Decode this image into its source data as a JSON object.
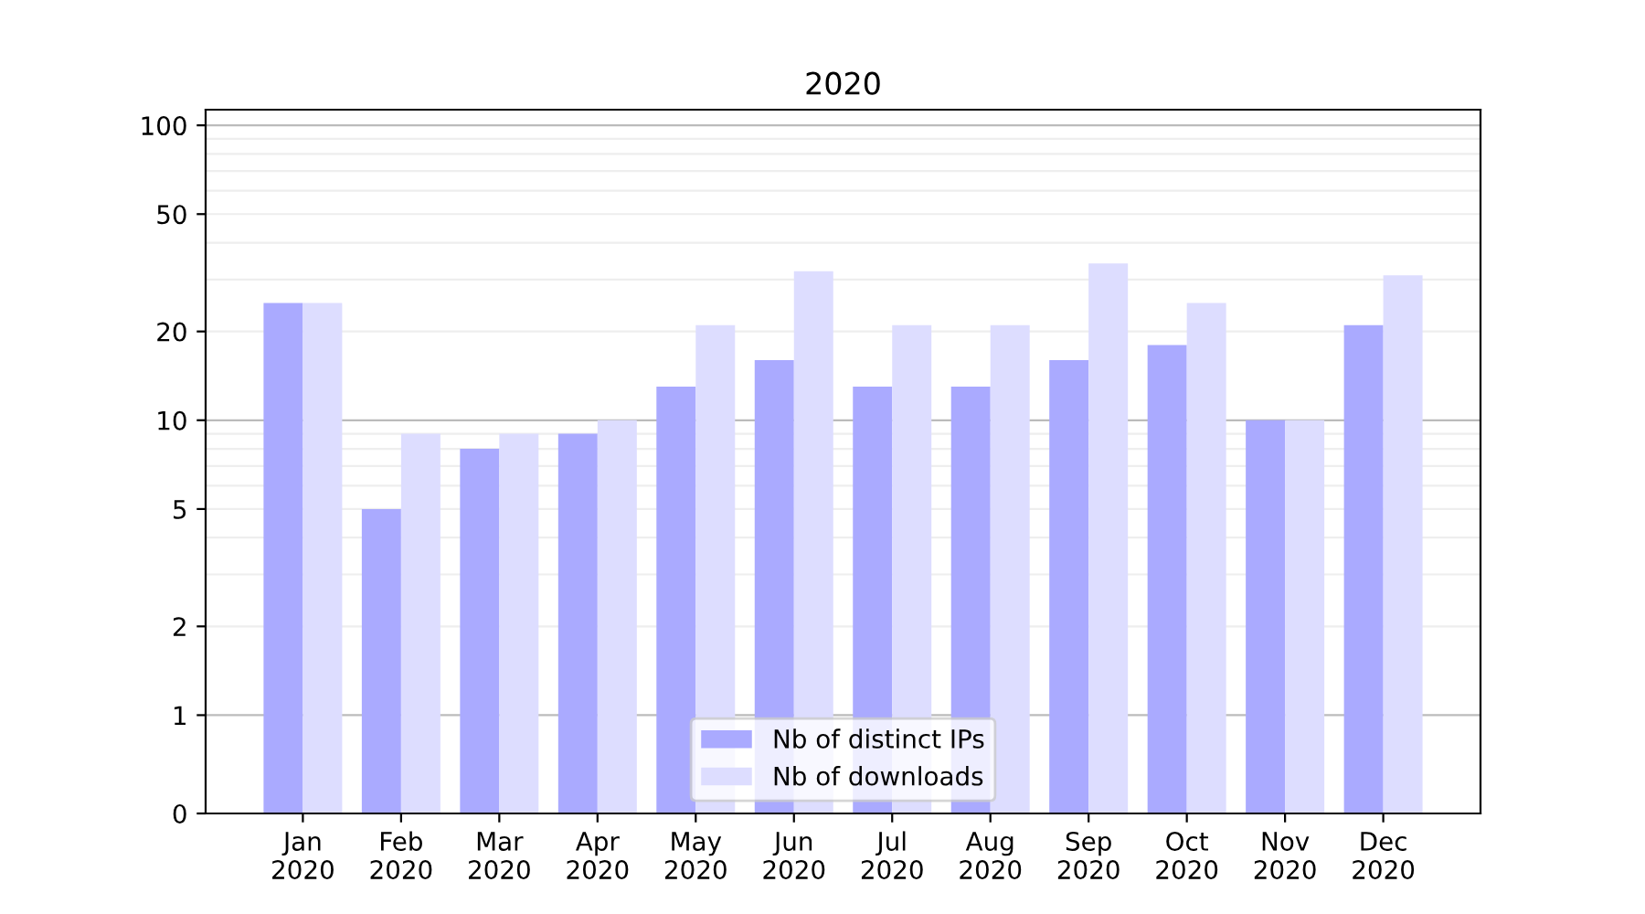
{
  "chart_data": {
    "type": "bar",
    "title": "2020",
    "categories": [
      "Jan\n2020",
      "Feb\n2020",
      "Mar\n2020",
      "Apr\n2020",
      "May\n2020",
      "Jun\n2020",
      "Jul\n2020",
      "Aug\n2020",
      "Sep\n2020",
      "Oct\n2020",
      "Nov\n2020",
      "Dec\n2020"
    ],
    "series": [
      {
        "name": "Nb of distinct IPs",
        "color": "#aaaaff",
        "values": [
          25,
          5,
          8,
          9,
          13,
          16,
          13,
          13,
          16,
          18,
          10,
          21
        ]
      },
      {
        "name": "Nb of downloads",
        "color": "#ddddff",
        "values": [
          25,
          9,
          9,
          10,
          21,
          32,
          21,
          21,
          34,
          25,
          10,
          31
        ]
      }
    ],
    "log": "y",
    "ylim": [
      0,
      113
    ],
    "yticks": [
      0,
      1,
      2,
      5,
      10,
      20,
      50,
      100
    ],
    "grid": "y",
    "legend": "bottom"
  }
}
